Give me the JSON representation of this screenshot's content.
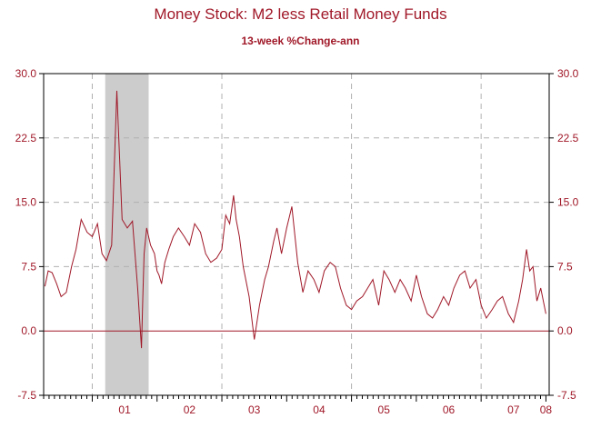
{
  "chart_data": {
    "type": "line",
    "title": "Money Stock: M2 less Retail Money Funds",
    "subtitle": "13-week %Change-ann",
    "x_tick_labels": [
      "01",
      "02",
      "03",
      "04",
      "05",
      "06",
      "07",
      "08"
    ],
    "y_ticks": [
      30.0,
      22.5,
      15.0,
      7.5,
      0.0,
      -7.5
    ],
    "y_tick_labels": [
      "30.0",
      "22.5",
      "15.0",
      "7.5",
      "0.0",
      "-7.5"
    ],
    "ylim": [
      -7.5,
      30.0
    ],
    "xlim": [
      2000.25,
      2008.05
    ],
    "grid": true,
    "recession_shading": [
      [
        2001.2,
        2001.87
      ]
    ],
    "series_color": "#a01828",
    "zero_line_color": "#a01828",
    "shading_color": "#cccccc",
    "series": [
      {
        "x": [
          2000.27,
          2000.32,
          2000.38,
          2000.45,
          2000.52,
          2000.6,
          2000.68,
          2000.75,
          2000.83,
          2000.92,
          2001.0,
          2001.08,
          2001.15,
          2001.22,
          2001.3,
          2001.38,
          2001.46,
          2001.54,
          2001.62,
          2001.7,
          2001.76,
          2001.78,
          2001.8,
          2001.84,
          2001.9,
          2001.96,
          2002.0,
          2002.03,
          2002.07,
          2002.12,
          2002.18,
          2002.25,
          2002.33,
          2002.42,
          2002.5,
          2002.58,
          2002.67,
          2002.75,
          2002.83,
          2002.92,
          2003.0,
          2003.06,
          2003.12,
          2003.18,
          2003.22,
          2003.27,
          2003.33,
          2003.42,
          2003.5,
          2003.58,
          2003.66,
          2003.72,
          2003.76,
          2003.8,
          2003.85,
          2003.92,
          2004.0,
          2004.08,
          2004.17,
          2004.25,
          2004.33,
          2004.42,
          2004.5,
          2004.58,
          2004.67,
          2004.75,
          2004.83,
          2004.92,
          2005.0,
          2005.08,
          2005.17,
          2005.25,
          2005.33,
          2005.42,
          2005.5,
          2005.58,
          2005.67,
          2005.75,
          2005.83,
          2005.92,
          2006.0,
          2006.08,
          2006.17,
          2006.25,
          2006.33,
          2006.42,
          2006.5,
          2006.58,
          2006.67,
          2006.75,
          2006.83,
          2006.92,
          2007.0,
          2007.08,
          2007.17,
          2007.25,
          2007.33,
          2007.42,
          2007.5,
          2007.58,
          2007.64,
          2007.7,
          2007.75,
          2007.8,
          2007.86,
          2007.92,
          2008.0
        ],
        "y": [
          5.2,
          7.0,
          6.8,
          5.5,
          4.0,
          4.5,
          7.5,
          9.5,
          13.0,
          11.5,
          11.0,
          12.5,
          9.0,
          8.2,
          10.0,
          28.0,
          13.0,
          12.0,
          12.8,
          5.0,
          -2.0,
          4.0,
          9.0,
          12.0,
          10.0,
          9.0,
          7.0,
          6.5,
          5.5,
          8.0,
          9.5,
          11.0,
          12.0,
          11.0,
          10.0,
          12.5,
          11.5,
          9.0,
          8.0,
          8.5,
          9.5,
          13.5,
          12.5,
          15.8,
          13.0,
          11.0,
          7.5,
          4.0,
          -1.0,
          3.0,
          6.0,
          7.5,
          9.0,
          10.5,
          12.0,
          9.0,
          12.0,
          14.5,
          8.0,
          4.5,
          7.0,
          6.0,
          4.5,
          7.0,
          8.0,
          7.5,
          5.0,
          3.0,
          2.5,
          3.5,
          4.0,
          5.0,
          6.0,
          3.0,
          7.0,
          6.0,
          4.5,
          6.0,
          5.0,
          3.5,
          6.5,
          4.0,
          2.0,
          1.5,
          2.5,
          4.0,
          3.0,
          5.0,
          6.5,
          7.0,
          5.0,
          6.0,
          3.0,
          1.5,
          2.5,
          3.5,
          4.0,
          2.0,
          1.0,
          3.5,
          6.0,
          9.5,
          7.0,
          7.5,
          3.5,
          5.0,
          2.0
        ]
      }
    ]
  }
}
